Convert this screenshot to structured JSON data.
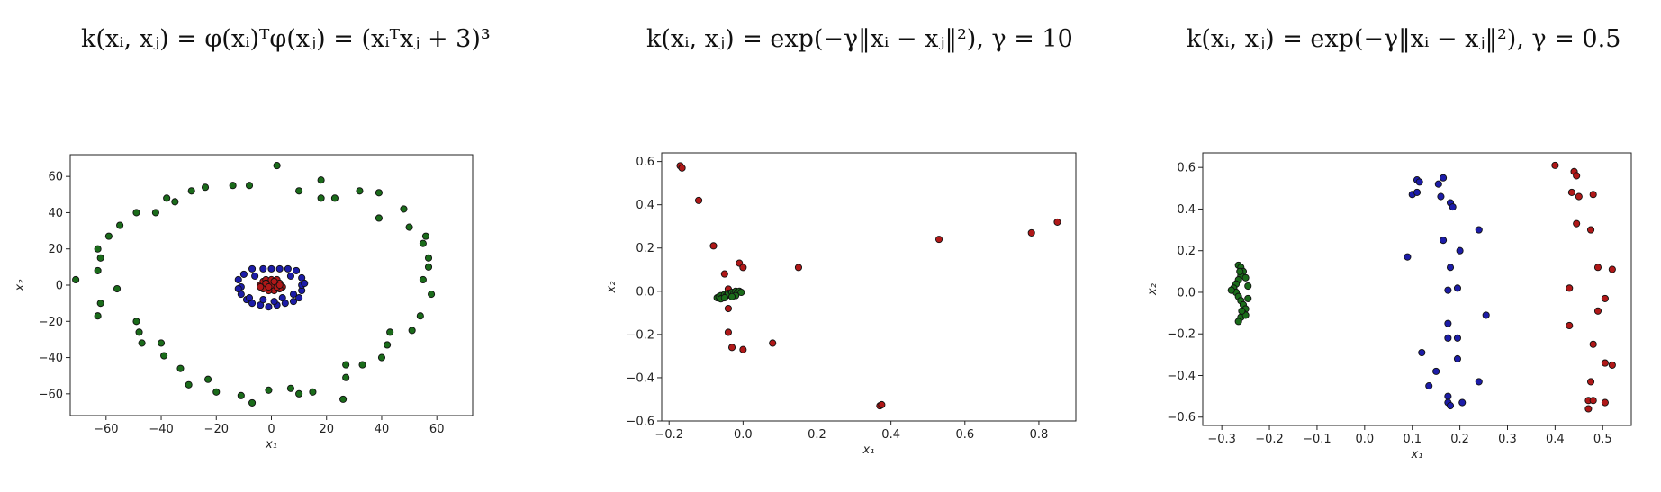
{
  "titles": [
    "k(xᵢ, xⱼ) = φ(xᵢ)ᵀφ(xⱼ) = (xᵢᵀxⱼ + 3)³",
    "k(xᵢ, xⱼ) = exp(−γ‖xᵢ − xⱼ‖²), γ = 10",
    "k(xᵢ, xⱼ) = exp(−γ‖xᵢ − xⱼ‖²), γ = 0.5"
  ],
  "colors": {
    "green": "#1a6b1a",
    "blue": "#1c1ca8",
    "red": "#b01818",
    "edge": "#111111"
  },
  "chart_data": [
    {
      "type": "scatter",
      "title": "k(xᵢ, xⱼ) = φ(xᵢ)ᵀφ(xⱼ) = (xᵢᵀxⱼ + 3)³",
      "xlabel": "x₁",
      "ylabel": "x₂",
      "xlim": [
        -73,
        73
      ],
      "ylim": [
        -72,
        72
      ],
      "xticks": [
        -60,
        -40,
        -20,
        0,
        20,
        40,
        60
      ],
      "yticks": [
        -60,
        -40,
        -20,
        0,
        20,
        40,
        60
      ],
      "xticklabels": [
        "−60",
        "−40",
        "−20",
        "0",
        "20",
        "40",
        "60"
      ],
      "yticklabels": [
        "−60",
        "−40",
        "−20",
        "0",
        "20",
        "40",
        "60"
      ],
      "series": [
        {
          "color": "green",
          "points": [
            [
              2,
              66
            ],
            [
              -14,
              55
            ],
            [
              -8,
              55
            ],
            [
              -24,
              54
            ],
            [
              -29,
              52
            ],
            [
              -38,
              48
            ],
            [
              -35,
              46
            ],
            [
              -42,
              40
            ],
            [
              -49,
              40
            ],
            [
              -55,
              33
            ],
            [
              -59,
              27
            ],
            [
              -63,
              20
            ],
            [
              -62,
              15
            ],
            [
              -63,
              8
            ],
            [
              -71,
              3
            ],
            [
              -56,
              -2
            ],
            [
              -62,
              -10
            ],
            [
              -63,
              -17
            ],
            [
              -49,
              -20
            ],
            [
              -48,
              -26
            ],
            [
              -47,
              -32
            ],
            [
              -40,
              -32
            ],
            [
              -39,
              -39
            ],
            [
              -33,
              -46
            ],
            [
              -30,
              -55
            ],
            [
              -23,
              -52
            ],
            [
              -20,
              -59
            ],
            [
              -11,
              -61
            ],
            [
              -7,
              -65
            ],
            [
              -1,
              -58
            ],
            [
              7,
              -57
            ],
            [
              10,
              -60
            ],
            [
              15,
              -59
            ],
            [
              26,
              -63
            ],
            [
              27,
              -51
            ],
            [
              27,
              -44
            ],
            [
              33,
              -44
            ],
            [
              40,
              -40
            ],
            [
              42,
              -33
            ],
            [
              43,
              -26
            ],
            [
              51,
              -25
            ],
            [
              54,
              -17
            ],
            [
              58,
              -5
            ],
            [
              55,
              3
            ],
            [
              57,
              10
            ],
            [
              57,
              15
            ],
            [
              55,
              23
            ],
            [
              56,
              27
            ],
            [
              50,
              32
            ],
            [
              48,
              42
            ],
            [
              39,
              37
            ],
            [
              39,
              51
            ],
            [
              32,
              52
            ],
            [
              23,
              48
            ],
            [
              18,
              48
            ],
            [
              18,
              58
            ],
            [
              10,
              52
            ]
          ]
        },
        {
          "color": "blue",
          "points": [
            [
              -12,
              3
            ],
            [
              -11,
              -1
            ],
            [
              -11,
              -5
            ],
            [
              -9,
              -8
            ],
            [
              -7,
              -10
            ],
            [
              -4,
              -11
            ],
            [
              -1,
              -12
            ],
            [
              2,
              -11
            ],
            [
              5,
              -10
            ],
            [
              8,
              -9
            ],
            [
              10,
              -7
            ],
            [
              11,
              -3
            ],
            [
              11,
              0
            ],
            [
              11,
              4
            ],
            [
              9,
              8
            ],
            [
              6,
              9
            ],
            [
              3,
              9
            ],
            [
              0,
              9
            ],
            [
              -3,
              9
            ],
            [
              -7,
              9
            ],
            [
              -10,
              6
            ],
            [
              -8,
              -7
            ],
            [
              -3,
              -8
            ],
            [
              4,
              -7
            ],
            [
              8,
              -5
            ],
            [
              -6,
              5
            ],
            [
              7,
              5
            ],
            [
              -12,
              -2
            ],
            [
              12,
              1
            ],
            [
              1,
              -9
            ]
          ]
        },
        {
          "color": "red",
          "points": [
            [
              -4,
              0
            ],
            [
              -3,
              2
            ],
            [
              -2,
              3
            ],
            [
              0,
              3
            ],
            [
              2,
              3
            ],
            [
              3,
              1
            ],
            [
              4,
              -1
            ],
            [
              3,
              -2
            ],
            [
              1,
              -3
            ],
            [
              -1,
              -3
            ],
            [
              -3,
              -2
            ],
            [
              -4,
              -1
            ],
            [
              -2,
              1
            ],
            [
              0,
              0
            ],
            [
              2,
              -1
            ],
            [
              1,
              2
            ],
            [
              -1,
              -1
            ],
            [
              3,
              0
            ]
          ]
        }
      ]
    },
    {
      "type": "scatter",
      "title": "k(xᵢ, xⱼ) = exp(−γ‖xᵢ − xⱼ‖²), γ = 10",
      "xlabel": "x₁",
      "ylabel": "x₂",
      "xlim": [
        -0.22,
        0.9
      ],
      "ylim": [
        -0.6,
        0.64
      ],
      "xticks": [
        -0.2,
        0,
        0.2,
        0.4,
        0.6,
        0.8
      ],
      "yticks": [
        -0.6,
        -0.4,
        -0.2,
        0,
        0.2,
        0.4,
        0.6
      ],
      "xticklabels": [
        "−0.2",
        "0.0",
        "0.2",
        "0.4",
        "0.6",
        "0.8"
      ],
      "yticklabels": [
        "−0.6",
        "−0.4",
        "−0.2",
        "0.0",
        "0.2",
        "0.4",
        "0.6"
      ],
      "series": [
        {
          "color": "red",
          "points": [
            [
              -0.17,
              0.58
            ],
            [
              -0.165,
              0.57
            ],
            [
              -0.12,
              0.42
            ],
            [
              -0.08,
              0.21
            ],
            [
              -0.01,
              0.13
            ],
            [
              0.0,
              0.11
            ],
            [
              0.15,
              0.11
            ],
            [
              -0.05,
              0.08
            ],
            [
              -0.04,
              0.01
            ],
            [
              -0.04,
              -0.08
            ],
            [
              -0.04,
              -0.19
            ],
            [
              -0.03,
              -0.26
            ],
            [
              0.0,
              -0.27
            ],
            [
              0.08,
              -0.24
            ],
            [
              0.37,
              -0.53
            ],
            [
              0.375,
              -0.525
            ],
            [
              0.53,
              0.24
            ],
            [
              0.78,
              0.27
            ],
            [
              0.85,
              0.32
            ]
          ]
        },
        {
          "color": "green",
          "points": [
            [
              -0.07,
              -0.03
            ],
            [
              -0.065,
              -0.025
            ],
            [
              -0.06,
              -0.02
            ],
            [
              -0.055,
              -0.03
            ],
            [
              -0.05,
              -0.015
            ],
            [
              -0.045,
              -0.02
            ],
            [
              -0.04,
              -0.01
            ],
            [
              -0.035,
              -0.015
            ],
            [
              -0.03,
              -0.005
            ],
            [
              -0.025,
              -0.01
            ],
            [
              -0.02,
              0.0
            ],
            [
              -0.015,
              -0.005
            ],
            [
              -0.01,
              0.0
            ],
            [
              -0.005,
              -0.005
            ],
            [
              -0.06,
              -0.035
            ],
            [
              -0.05,
              -0.03
            ],
            [
              -0.02,
              -0.02
            ],
            [
              -0.03,
              -0.025
            ]
          ]
        }
      ]
    },
    {
      "type": "scatter",
      "title": "k(xᵢ, xⱼ) = exp(−γ‖xᵢ − xⱼ‖²), γ = 0.5",
      "xlabel": "x₁",
      "ylabel": "x₂",
      "xlim": [
        -0.34,
        0.56
      ],
      "ylim": [
        -0.64,
        0.67
      ],
      "xticks": [
        -0.3,
        -0.2,
        -0.1,
        0,
        0.1,
        0.2,
        0.3,
        0.4,
        0.5
      ],
      "yticks": [
        -0.6,
        -0.4,
        -0.2,
        0,
        0.2,
        0.4,
        0.6
      ],
      "xticklabels": [
        "−0.3",
        "−0.2",
        "−0.1",
        "0.0",
        "0.1",
        "0.2",
        "0.3",
        "0.4",
        "0.5"
      ],
      "yticklabels": [
        "−0.6",
        "−0.4",
        "−0.2",
        "0.0",
        "0.2",
        "0.4",
        "0.6"
      ],
      "series": [
        {
          "color": "green",
          "points": [
            [
              -0.265,
              0.13
            ],
            [
              -0.26,
              0.12
            ],
            [
              -0.255,
              0.1
            ],
            [
              -0.26,
              0.08
            ],
            [
              -0.265,
              0.06
            ],
            [
              -0.27,
              0.04
            ],
            [
              -0.275,
              0.02
            ],
            [
              -0.27,
              0.0
            ],
            [
              -0.265,
              -0.02
            ],
            [
              -0.26,
              -0.04
            ],
            [
              -0.255,
              -0.06
            ],
            [
              -0.25,
              -0.08
            ],
            [
              -0.255,
              -0.1
            ],
            [
              -0.26,
              -0.12
            ],
            [
              -0.265,
              -0.14
            ],
            [
              -0.245,
              0.03
            ],
            [
              -0.25,
              0.07
            ],
            [
              -0.245,
              -0.03
            ],
            [
              -0.28,
              0.01
            ],
            [
              -0.25,
              -0.11
            ],
            [
              -0.262,
              0.1
            ],
            [
              -0.258,
              -0.09
            ]
          ]
        },
        {
          "color": "blue",
          "points": [
            [
              0.1,
              0.47
            ],
            [
              0.11,
              0.48
            ],
            [
              0.11,
              0.54
            ],
            [
              0.115,
              0.53
            ],
            [
              0.155,
              0.52
            ],
            [
              0.16,
              0.46
            ],
            [
              0.165,
              0.55
            ],
            [
              0.18,
              0.43
            ],
            [
              0.185,
              0.41
            ],
            [
              0.165,
              0.25
            ],
            [
              0.24,
              0.3
            ],
            [
              0.2,
              0.2
            ],
            [
              0.18,
              0.12
            ],
            [
              0.09,
              0.17
            ],
            [
              0.175,
              0.01
            ],
            [
              0.195,
              0.02
            ],
            [
              0.255,
              -0.11
            ],
            [
              0.175,
              -0.15
            ],
            [
              0.175,
              -0.22
            ],
            [
              0.195,
              -0.22
            ],
            [
              0.195,
              -0.32
            ],
            [
              0.12,
              -0.29
            ],
            [
              0.15,
              -0.38
            ],
            [
              0.135,
              -0.45
            ],
            [
              0.175,
              -0.5
            ],
            [
              0.175,
              -0.53
            ],
            [
              0.18,
              -0.545
            ],
            [
              0.205,
              -0.53
            ],
            [
              0.24,
              -0.43
            ]
          ]
        },
        {
          "color": "red",
          "points": [
            [
              0.4,
              0.61
            ],
            [
              0.44,
              0.58
            ],
            [
              0.445,
              0.56
            ],
            [
              0.435,
              0.48
            ],
            [
              0.45,
              0.46
            ],
            [
              0.48,
              0.47
            ],
            [
              0.445,
              0.33
            ],
            [
              0.475,
              0.3
            ],
            [
              0.49,
              0.12
            ],
            [
              0.52,
              0.11
            ],
            [
              0.43,
              0.02
            ],
            [
              0.505,
              -0.03
            ],
            [
              0.49,
              -0.09
            ],
            [
              0.43,
              -0.16
            ],
            [
              0.48,
              -0.25
            ],
            [
              0.505,
              -0.34
            ],
            [
              0.52,
              -0.35
            ],
            [
              0.475,
              -0.43
            ],
            [
              0.47,
              -0.52
            ],
            [
              0.48,
              -0.52
            ],
            [
              0.505,
              -0.53
            ],
            [
              0.47,
              -0.56
            ]
          ]
        }
      ]
    }
  ]
}
